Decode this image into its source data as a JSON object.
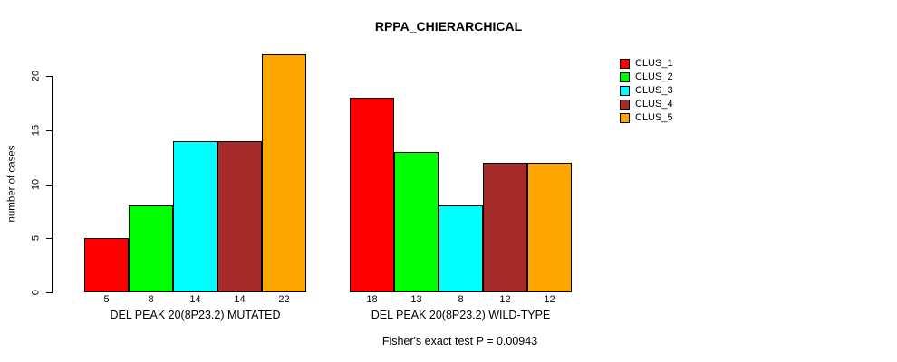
{
  "title": "RPPA_CHIERARCHICAL",
  "y_axis": {
    "label": "number of cases",
    "ticks": [
      0,
      5,
      10,
      15,
      20
    ]
  },
  "footer": "Fisher's exact test P = 0.00943",
  "legend": {
    "position": "top-right",
    "items": [
      {
        "label": "CLUS_1",
        "color": "#FF0000"
      },
      {
        "label": "CLUS_2",
        "color": "#00FF00"
      },
      {
        "label": "CLUS_3",
        "color": "#00FFFF"
      },
      {
        "label": "CLUS_4",
        "color": "#A52A2A"
      },
      {
        "label": "CLUS_5",
        "color": "#FFA500"
      }
    ]
  },
  "chart_data": {
    "type": "bar",
    "title": "RPPA_CHIERARCHICAL",
    "xlabel": "",
    "ylabel": "number of cases",
    "ylim": [
      0,
      22
    ],
    "yticks": [
      0,
      5,
      10,
      15,
      20
    ],
    "grid": false,
    "legend_position": "top-right",
    "series_names": [
      "CLUS_1",
      "CLUS_2",
      "CLUS_3",
      "CLUS_4",
      "CLUS_5"
    ],
    "series_colors": [
      "#FF0000",
      "#00FF00",
      "#00FFFF",
      "#A52A2A",
      "#FFA500"
    ],
    "groups": [
      {
        "label": "DEL PEAK 20(8P23.2) MUTATED",
        "values": [
          5,
          8,
          14,
          14,
          22
        ]
      },
      {
        "label": "DEL PEAK 20(8P23.2) WILD-TYPE",
        "values": [
          18,
          13,
          8,
          12,
          12
        ]
      }
    ],
    "bar_value_labels_shown": true,
    "annotation": "Fisher's exact test P = 0.00943"
  }
}
